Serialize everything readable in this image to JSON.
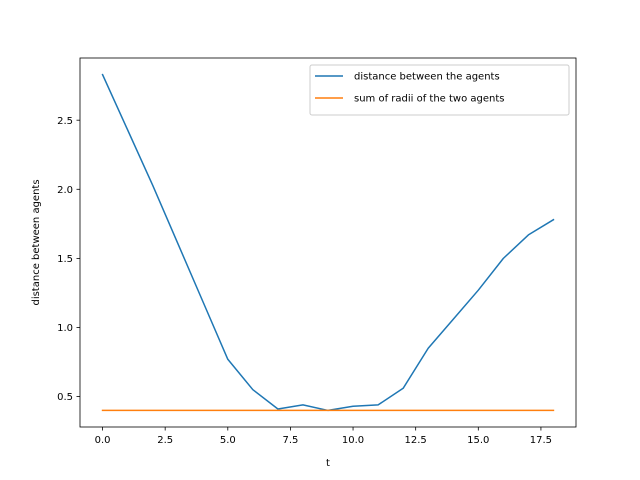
{
  "chart_data": {
    "type": "line",
    "title": "",
    "xlabel": "t",
    "ylabel": "distance between agents",
    "xlim": [
      -0.9,
      18.9
    ],
    "ylim": [
      0.28,
      2.95
    ],
    "xticks": [
      0.0,
      2.5,
      5.0,
      7.5,
      10.0,
      12.5,
      15.0,
      17.5
    ],
    "xtick_labels": [
      "0.0",
      "2.5",
      "5.0",
      "7.5",
      "10.0",
      "12.5",
      "15.0",
      "17.5"
    ],
    "yticks": [
      0.5,
      1.0,
      1.5,
      2.0,
      2.5
    ],
    "ytick_labels": [
      "0.5",
      "1.0",
      "1.5",
      "2.0",
      "2.5"
    ],
    "grid": false,
    "legend_position": "top-right",
    "series": [
      {
        "name": "distance between the agents",
        "color": "#1f77b4",
        "x": [
          0,
          1,
          2,
          3,
          4,
          5,
          6,
          7,
          8,
          9,
          10,
          11,
          12,
          13,
          14,
          15,
          16,
          17,
          18
        ],
        "y": [
          2.83,
          2.43,
          2.03,
          1.61,
          1.19,
          0.77,
          0.55,
          0.41,
          0.44,
          0.4,
          0.43,
          0.44,
          0.56,
          0.85,
          1.06,
          1.27,
          1.5,
          1.67,
          1.78
        ]
      },
      {
        "name": "sum of radii of the two agents",
        "color": "#ff7f0e",
        "x": [
          0,
          1,
          2,
          3,
          4,
          5,
          6,
          7,
          8,
          9,
          10,
          11,
          12,
          13,
          14,
          15,
          16,
          17,
          18
        ],
        "y": [
          0.4,
          0.4,
          0.4,
          0.4,
          0.4,
          0.4,
          0.4,
          0.4,
          0.4,
          0.4,
          0.4,
          0.4,
          0.4,
          0.4,
          0.4,
          0.4,
          0.4,
          0.4,
          0.4
        ]
      }
    ]
  }
}
